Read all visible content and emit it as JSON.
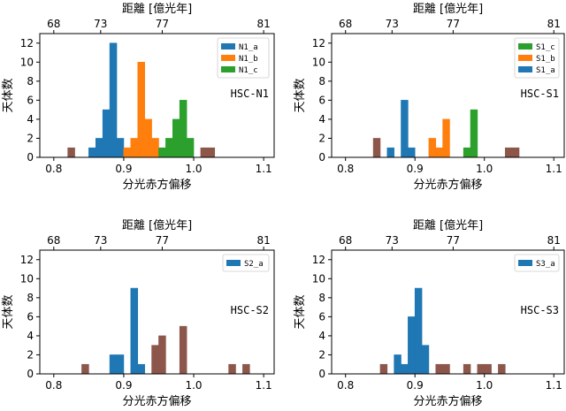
{
  "figure": {
    "background": "#ffffff"
  },
  "chart_data": [
    {
      "type": "histogram",
      "panel": "HSC-N1",
      "xlabel": "分光赤方偏移",
      "ylabel": "天体数",
      "top_xlabel": "距離 [億光年]",
      "xlim": [
        0.78,
        1.115
      ],
      "ylim": [
        0,
        13
      ],
      "xticks": [
        0.8,
        0.9,
        1.0,
        1.1
      ],
      "xtick_labels": [
        "0.8",
        "0.9",
        "1.0",
        "1.1"
      ],
      "yticks": [
        0,
        2,
        4,
        6,
        8,
        10,
        12
      ],
      "top_xticks_pos": [
        0.8,
        0.867,
        0.955,
        1.1
      ],
      "top_xtick_labels": [
        "68",
        "73",
        "77",
        "81"
      ],
      "legend": [
        {
          "name": "N1_a",
          "color": "#1f77b4"
        },
        {
          "name": "N1_b",
          "color": "#ff7f0e"
        },
        {
          "name": "N1_c",
          "color": "#2ca02c"
        }
      ],
      "bin_width": 0.01,
      "series": [
        {
          "name": "other",
          "color": "#8c564b",
          "bins": [
            [
              0.82,
              1
            ],
            [
              1.01,
              1
            ],
            [
              1.02,
              1
            ]
          ]
        },
        {
          "name": "N1_a",
          "color": "#1f77b4",
          "bins": [
            [
              0.85,
              1
            ],
            [
              0.86,
              2
            ],
            [
              0.87,
              5
            ],
            [
              0.88,
              12
            ],
            [
              0.89,
              2
            ]
          ]
        },
        {
          "name": "N1_b",
          "color": "#ff7f0e",
          "bins": [
            [
              0.9,
              1
            ],
            [
              0.91,
              2
            ],
            [
              0.92,
              10
            ],
            [
              0.93,
              4
            ],
            [
              0.94,
              2
            ]
          ]
        },
        {
          "name": "N1_c",
          "color": "#2ca02c",
          "bins": [
            [
              0.95,
              1
            ],
            [
              0.96,
              2
            ],
            [
              0.97,
              4
            ],
            [
              0.98,
              6
            ],
            [
              0.99,
              2
            ]
          ]
        }
      ]
    },
    {
      "type": "histogram",
      "panel": "HSC-S1",
      "xlabel": "分光赤方偏移",
      "ylabel": "天体数",
      "top_xlabel": "距離 [億光年]",
      "xlim": [
        0.78,
        1.115
      ],
      "ylim": [
        0,
        13
      ],
      "xticks": [
        0.8,
        0.9,
        1.0,
        1.1
      ],
      "xtick_labels": [
        "0.8",
        "0.9",
        "1.0",
        "1.1"
      ],
      "yticks": [
        0,
        2,
        4,
        6,
        8,
        10,
        12
      ],
      "top_xticks_pos": [
        0.8,
        0.867,
        0.955,
        1.1
      ],
      "top_xtick_labels": [
        "68",
        "73",
        "77",
        "81"
      ],
      "legend": [
        {
          "name": "S1_c",
          "color": "#2ca02c"
        },
        {
          "name": "S1_b",
          "color": "#ff7f0e"
        },
        {
          "name": "S1_a",
          "color": "#1f77b4"
        }
      ],
      "bin_width": 0.01,
      "series": [
        {
          "name": "other",
          "color": "#8c564b",
          "bins": [
            [
              0.84,
              2
            ],
            [
              1.03,
              1
            ],
            [
              1.04,
              1
            ]
          ]
        },
        {
          "name": "S1_a",
          "color": "#1f77b4",
          "bins": [
            [
              0.86,
              1
            ],
            [
              0.88,
              6
            ],
            [
              0.89,
              1
            ]
          ]
        },
        {
          "name": "S1_b",
          "color": "#ff7f0e",
          "bins": [
            [
              0.92,
              2
            ],
            [
              0.93,
              1
            ],
            [
              0.94,
              4
            ]
          ]
        },
        {
          "name": "S1_c",
          "color": "#2ca02c",
          "bins": [
            [
              0.97,
              1
            ],
            [
              0.98,
              5
            ]
          ]
        }
      ]
    },
    {
      "type": "histogram",
      "panel": "HSC-S2",
      "xlabel": "分光赤方偏移",
      "ylabel": "天体数",
      "top_xlabel": "距離 [億光年]",
      "xlim": [
        0.78,
        1.115
      ],
      "ylim": [
        0,
        13
      ],
      "xticks": [
        0.8,
        0.9,
        1.0,
        1.1
      ],
      "xtick_labels": [
        "0.8",
        "0.9",
        "1.0",
        "1.1"
      ],
      "yticks": [
        0,
        2,
        4,
        6,
        8,
        10,
        12
      ],
      "top_xticks_pos": [
        0.8,
        0.867,
        0.955,
        1.1
      ],
      "top_xtick_labels": [
        "68",
        "73",
        "77",
        "81"
      ],
      "legend": [
        {
          "name": "S2_a",
          "color": "#1f77b4"
        }
      ],
      "bin_width": 0.01,
      "series": [
        {
          "name": "S2_a",
          "color": "#1f77b4",
          "bins": [
            [
              0.88,
              2
            ],
            [
              0.89,
              2
            ],
            [
              0.91,
              9
            ],
            [
              0.92,
              1
            ]
          ]
        },
        {
          "name": "other",
          "color": "#8c564b",
          "bins": [
            [
              0.84,
              1
            ],
            [
              0.94,
              3
            ],
            [
              0.95,
              4
            ],
            [
              0.98,
              5
            ],
            [
              1.05,
              1
            ],
            [
              1.07,
              1
            ]
          ]
        }
      ]
    },
    {
      "type": "histogram",
      "panel": "HSC-S3",
      "xlabel": "分光赤方偏移",
      "ylabel": "天体数",
      "top_xlabel": "距離 [億光年]",
      "xlim": [
        0.78,
        1.115
      ],
      "ylim": [
        0,
        13
      ],
      "xticks": [
        0.8,
        0.9,
        1.0,
        1.1
      ],
      "xtick_labels": [
        "0.8",
        "0.9",
        "1.0",
        "1.1"
      ],
      "yticks": [
        0,
        2,
        4,
        6,
        8,
        10,
        12
      ],
      "top_xticks_pos": [
        0.8,
        0.867,
        0.955,
        1.1
      ],
      "top_xtick_labels": [
        "68",
        "73",
        "77",
        "81"
      ],
      "legend": [
        {
          "name": "S3_a",
          "color": "#1f77b4"
        }
      ],
      "bin_width": 0.01,
      "series": [
        {
          "name": "S3_a",
          "color": "#1f77b4",
          "bins": [
            [
              0.87,
              2
            ],
            [
              0.88,
              1
            ],
            [
              0.89,
              6
            ],
            [
              0.9,
              9
            ],
            [
              0.91,
              3
            ]
          ]
        },
        {
          "name": "other",
          "color": "#8c564b",
          "bins": [
            [
              0.85,
              1
            ],
            [
              0.93,
              1
            ],
            [
              0.94,
              1
            ],
            [
              0.97,
              1
            ],
            [
              0.99,
              1
            ],
            [
              1.0,
              1
            ],
            [
              1.02,
              1
            ]
          ]
        }
      ]
    }
  ]
}
